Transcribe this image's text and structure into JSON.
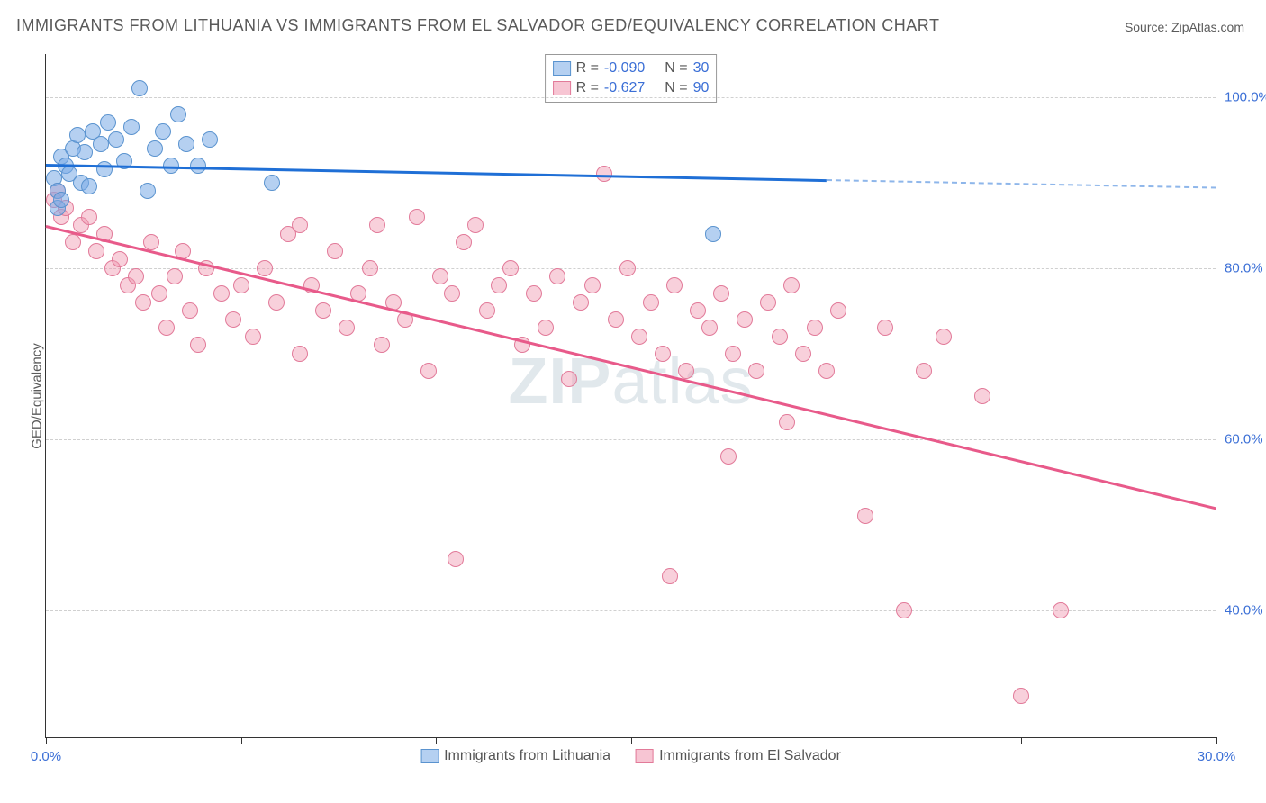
{
  "title": "IMMIGRANTS FROM LITHUANIA VS IMMIGRANTS FROM EL SALVADOR GED/EQUIVALENCY CORRELATION CHART",
  "source": "Source: ZipAtlas.com",
  "watermark_zip": "ZIP",
  "watermark_atlas": "atlas",
  "y_axis_label": "GED/Equivalency",
  "chart": {
    "type": "scatter",
    "xlim": [
      0,
      30
    ],
    "ylim": [
      25,
      105
    ],
    "x_ticks": [
      0,
      5,
      10,
      15,
      20,
      25,
      30
    ],
    "x_tick_labels_shown": {
      "0": "0.0%",
      "30": "30.0%"
    },
    "y_ticks": [
      40,
      60,
      80,
      100
    ],
    "y_tick_labels": {
      "40": "40.0%",
      "60": "60.0%",
      "80": "80.0%",
      "100": "100.0%"
    },
    "grid_color": "#d0d0d0",
    "background_color": "#ffffff",
    "series": [
      {
        "name": "Immigrants from Lithuania",
        "marker_fill": "rgba(120,170,230,0.55)",
        "marker_stroke": "#5a93cf",
        "marker_radius": 9,
        "trend_color": "#1f6fd6",
        "trend_width": 2.5,
        "R": "-0.090",
        "N": "30",
        "trend": {
          "x1": 0,
          "y1": 92.2,
          "x2": 20,
          "y2": 90.4,
          "x_dash_from": 20,
          "x_dash_to": 30,
          "y_dash_to": 89.5
        },
        "points": [
          [
            0.2,
            90.5
          ],
          [
            0.3,
            89
          ],
          [
            0.4,
            93
          ],
          [
            0.5,
            92
          ],
          [
            0.6,
            91
          ],
          [
            0.7,
            94
          ],
          [
            0.8,
            95.5
          ],
          [
            0.9,
            90
          ],
          [
            1.0,
            93.5
          ],
          [
            1.1,
            89.5
          ],
          [
            1.2,
            96
          ],
          [
            1.4,
            94.5
          ],
          [
            1.5,
            91.5
          ],
          [
            1.6,
            97
          ],
          [
            1.8,
            95
          ],
          [
            2.0,
            92.5
          ],
          [
            2.2,
            96.5
          ],
          [
            2.4,
            101
          ],
          [
            2.6,
            89
          ],
          [
            2.8,
            94
          ],
          [
            3.0,
            96
          ],
          [
            3.2,
            92
          ],
          [
            3.4,
            98
          ],
          [
            3.6,
            94.5
          ],
          [
            3.9,
            92
          ],
          [
            4.2,
            95
          ],
          [
            0.3,
            87
          ],
          [
            5.8,
            90
          ],
          [
            0.4,
            88
          ],
          [
            17.1,
            84
          ]
        ]
      },
      {
        "name": "Immigrants from El Salvador",
        "marker_fill": "rgba(240,150,175,0.45)",
        "marker_stroke": "#e27a99",
        "marker_radius": 9,
        "trend_color": "#e85a8a",
        "trend_width": 2.5,
        "R": "-0.627",
        "N": "90",
        "trend": {
          "x1": 0,
          "y1": 85,
          "x2": 30,
          "y2": 52
        },
        "points": [
          [
            0.2,
            88
          ],
          [
            0.3,
            89
          ],
          [
            0.4,
            86
          ],
          [
            0.5,
            87
          ],
          [
            0.7,
            83
          ],
          [
            0.9,
            85
          ],
          [
            1.1,
            86
          ],
          [
            1.3,
            82
          ],
          [
            1.5,
            84
          ],
          [
            1.7,
            80
          ],
          [
            1.9,
            81
          ],
          [
            2.1,
            78
          ],
          [
            2.3,
            79
          ],
          [
            2.5,
            76
          ],
          [
            2.7,
            83
          ],
          [
            2.9,
            77
          ],
          [
            3.1,
            73
          ],
          [
            3.3,
            79
          ],
          [
            3.5,
            82
          ],
          [
            3.7,
            75
          ],
          [
            3.9,
            71
          ],
          [
            4.1,
            80
          ],
          [
            4.5,
            77
          ],
          [
            4.8,
            74
          ],
          [
            5.0,
            78
          ],
          [
            5.3,
            72
          ],
          [
            5.6,
            80
          ],
          [
            5.9,
            76
          ],
          [
            6.2,
            84
          ],
          [
            6.5,
            70
          ],
          [
            6.8,
            78
          ],
          [
            7.1,
            75
          ],
          [
            7.4,
            82
          ],
          [
            7.7,
            73
          ],
          [
            8.0,
            77
          ],
          [
            8.3,
            80
          ],
          [
            8.6,
            71
          ],
          [
            8.9,
            76
          ],
          [
            9.2,
            74
          ],
          [
            9.5,
            86
          ],
          [
            9.8,
            68
          ],
          [
            10.1,
            79
          ],
          [
            10.4,
            77
          ],
          [
            10.7,
            83
          ],
          [
            11.0,
            85
          ],
          [
            11.3,
            75
          ],
          [
            11.6,
            78
          ],
          [
            11.9,
            80
          ],
          [
            12.2,
            71
          ],
          [
            12.5,
            77
          ],
          [
            12.8,
            73
          ],
          [
            13.1,
            79
          ],
          [
            13.4,
            67
          ],
          [
            13.7,
            76
          ],
          [
            14.0,
            78
          ],
          [
            14.3,
            91
          ],
          [
            14.6,
            74
          ],
          [
            14.9,
            80
          ],
          [
            15.2,
            72
          ],
          [
            15.5,
            76
          ],
          [
            15.8,
            70
          ],
          [
            16.1,
            78
          ],
          [
            16.4,
            68
          ],
          [
            16.7,
            75
          ],
          [
            17.0,
            73
          ],
          [
            17.3,
            77
          ],
          [
            17.6,
            70
          ],
          [
            17.9,
            74
          ],
          [
            18.2,
            68
          ],
          [
            18.5,
            76
          ],
          [
            18.8,
            72
          ],
          [
            19.1,
            78
          ],
          [
            19.4,
            70
          ],
          [
            19.7,
            73
          ],
          [
            20.0,
            68
          ],
          [
            20.3,
            75
          ],
          [
            10.5,
            46
          ],
          [
            16.0,
            44
          ],
          [
            17.5,
            58
          ],
          [
            22.0,
            40
          ],
          [
            26.0,
            40
          ],
          [
            21.0,
            51
          ],
          [
            25.0,
            30
          ],
          [
            22.5,
            68
          ],
          [
            23.0,
            72
          ],
          [
            24.0,
            65
          ],
          [
            21.5,
            73
          ],
          [
            19.0,
            62
          ],
          [
            6.5,
            85
          ],
          [
            8.5,
            85
          ]
        ]
      }
    ]
  },
  "legend_top": {
    "R_label": "R =",
    "N_label": "N ="
  },
  "legend_bottom": {
    "series1_label": "Immigrants from Lithuania",
    "series2_label": "Immigrants from El Salvador"
  },
  "colors": {
    "blue_swatch_fill": "rgba(120,170,230,0.55)",
    "blue_swatch_border": "#5a93cf",
    "pink_swatch_fill": "rgba(240,150,175,0.55)",
    "pink_swatch_border": "#e27a99",
    "stat_value_color": "#3b6fd6"
  }
}
